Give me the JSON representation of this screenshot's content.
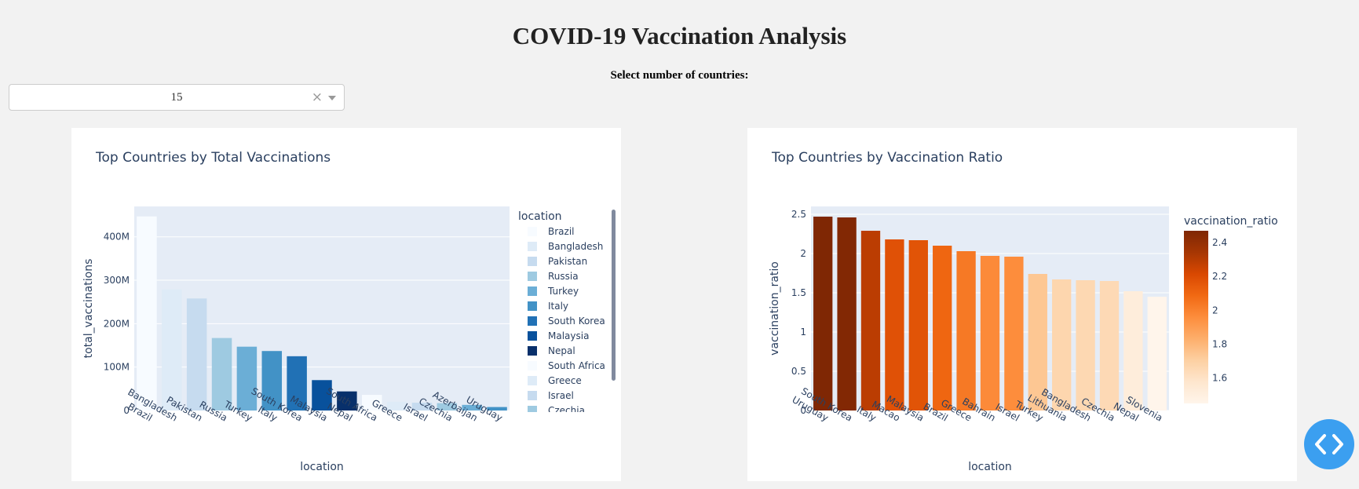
{
  "header": {
    "title": "COVID-19 Vaccination Analysis",
    "select_label": "Select number of countries:"
  },
  "dropdown": {
    "value": "15",
    "clear_icon": "×"
  },
  "colors": {
    "page_bg": "#f2f2f2",
    "plot_bg": "#e5ecf6",
    "blues": [
      "#f7fbff",
      "#deebf7",
      "#c6dbef",
      "#9ecae1",
      "#6baed6",
      "#4292c6",
      "#2171b5",
      "#08519c",
      "#08306b"
    ],
    "oranges": [
      "#fff5eb",
      "#fee6ce",
      "#fdd0a2",
      "#fdae6b",
      "#fd8d3c",
      "#f16913",
      "#d94801",
      "#a63603",
      "#7f2704"
    ],
    "code_button": "#3b9ff0"
  },
  "code_button_icon": "code-icon",
  "chart_data": [
    {
      "type": "bar",
      "title": "Top Countries by Total Vaccinations",
      "xlabel": "location",
      "ylabel": "total_vaccinations",
      "ylim": [
        0,
        470000000
      ],
      "yticks": [
        0,
        100000000,
        200000000,
        300000000,
        400000000
      ],
      "ytick_labels": [
        "0",
        "100M",
        "200M",
        "300M",
        "400M"
      ],
      "categories": [
        "Brazil",
        "Bangladesh",
        "Pakistan",
        "Russia",
        "Turkey",
        "Italy",
        "South Korea",
        "Malaysia",
        "Nepal",
        "South Africa",
        "Greece",
        "Israel",
        "Czechia",
        "Azerbaijan",
        "Uruguay"
      ],
      "values": [
        447000000,
        279000000,
        258000000,
        167000000,
        147000000,
        137000000,
        125000000,
        70000000,
        44000000,
        36000000,
        20000000,
        18000000,
        17000000,
        13000000,
        8000000
      ],
      "bar_colors": [
        "#f7fbff",
        "#deebf7",
        "#c6dbef",
        "#9ecae1",
        "#6baed6",
        "#4292c6",
        "#2171b5",
        "#08519c",
        "#08306b",
        "#f7fbff",
        "#deebf7",
        "#c6dbef",
        "#9ecae1",
        "#6baed6",
        "#4292c6"
      ],
      "legend_title": "location",
      "legend_visible": [
        "Brazil",
        "Bangladesh",
        "Pakistan",
        "Russia",
        "Turkey",
        "Italy",
        "South Korea",
        "Malaysia",
        "Nepal",
        "South Africa",
        "Greece",
        "Israel",
        "Czechia"
      ],
      "legend_placement": "right, scrollable",
      "grid": true
    },
    {
      "type": "bar",
      "title": "Top Countries by Vaccination Ratio",
      "xlabel": "location",
      "ylabel": "vaccination_ratio",
      "ylim": [
        0,
        2.6
      ],
      "yticks": [
        0,
        0.5,
        1,
        1.5,
        2,
        2.5
      ],
      "ytick_labels": [
        "0",
        "0.5",
        "1",
        "1.5",
        "2",
        "2.5"
      ],
      "categories": [
        "Uruguay",
        "South Korea",
        "Italy",
        "Macao",
        "Malaysia",
        "Brazil",
        "Greece",
        "Bahrain",
        "Israel",
        "Turkey",
        "Lithuania",
        "Bangladesh",
        "Czechia",
        "Nepal",
        "Slovenia"
      ],
      "values": [
        2.47,
        2.46,
        2.29,
        2.18,
        2.17,
        2.1,
        2.03,
        1.97,
        1.96,
        1.74,
        1.67,
        1.66,
        1.65,
        1.52,
        1.45
      ],
      "colorbar_title": "vaccination_ratio",
      "color_range": [
        1.45,
        2.47
      ],
      "colorbar_ticks": [
        1.6,
        1.8,
        2,
        2.2,
        2.4
      ],
      "colorbar_tick_labels": [
        "1.6",
        "1.8",
        "2",
        "2.2",
        "2.4"
      ],
      "grid": true
    }
  ]
}
